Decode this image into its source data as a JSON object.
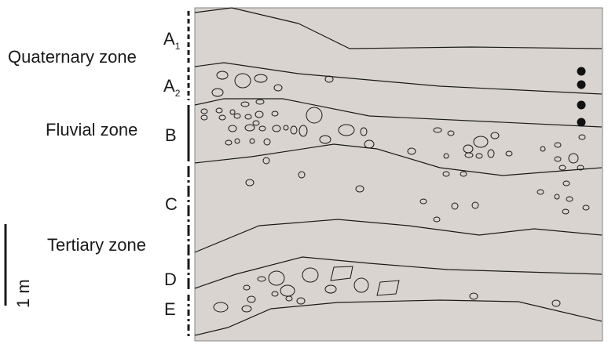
{
  "colors": {
    "background": "#ffffff",
    "section_fill": "#d9d4cf",
    "line": "#1a1a1a"
  },
  "horizons": [
    {
      "id": "A",
      "sub": "1"
    },
    {
      "id": "A",
      "sub": "2"
    },
    {
      "id": "B",
      "sub": ""
    },
    {
      "id": "C",
      "sub": ""
    },
    {
      "id": "D",
      "sub": ""
    },
    {
      "id": "E",
      "sub": ""
    }
  ],
  "zones": {
    "quaternary": "Quaternary zone",
    "fluvial": "Fluvial zone",
    "tertiary": "Tertiary zone"
  },
  "scale": {
    "label": "1 m"
  },
  "icons": {
    "boundary_axis": "dashed-vertical-axis",
    "pebbles": "ellipse-outline",
    "angular_clasts": "quadrilateral-outline",
    "sample_points": "filled-dot"
  }
}
